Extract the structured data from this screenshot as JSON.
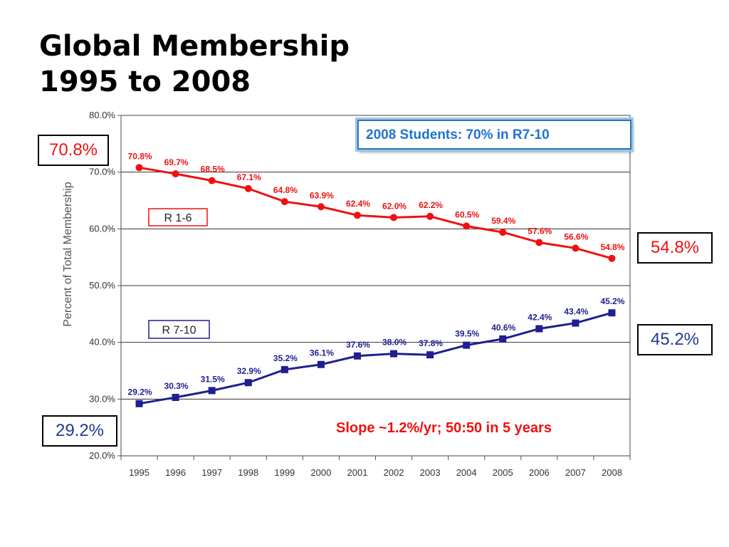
{
  "title": {
    "line1": "Global Membership",
    "line2": "1995 to 2008"
  },
  "callouts": {
    "red_start": "70.8%",
    "red_end": "54.8%",
    "blue_end": "45.2%",
    "blue_start": "29.2%"
  },
  "note_box": "2008 Students: 70% in R7-10",
  "slope_note": "Slope ~1.2%/yr; 50:50 in 5 years",
  "colors": {
    "red": "#ee1111",
    "blue": "#1f1f8f",
    "note_blue": "#1f73d2"
  },
  "chart_data": {
    "type": "line",
    "title": "",
    "xlabel": "",
    "ylabel": "Percent of Total Membership",
    "x": [
      "1995",
      "1996",
      "1997",
      "1998",
      "1999",
      "2000",
      "2001",
      "2002",
      "2003",
      "2004",
      "2005",
      "2006",
      "2007",
      "2008"
    ],
    "ylim": [
      20,
      80
    ],
    "yticks": [
      "20.0%",
      "30.0%",
      "40.0%",
      "50.0%",
      "60.0%",
      "70.0%",
      "80.0%"
    ],
    "grid": true,
    "series": [
      {
        "name": "R 1-6",
        "color": "#ee1111",
        "marker": "circle",
        "values": [
          70.8,
          69.7,
          68.5,
          67.1,
          64.8,
          63.9,
          62.4,
          62.0,
          62.2,
          60.5,
          59.4,
          57.6,
          56.6,
          54.8
        ],
        "labels": [
          "70.8%",
          "69.7%",
          "68.5%",
          "67.1%",
          "64.8%",
          "63.9%",
          "62.4%",
          "62.0%",
          "62.2%",
          "60.5%",
          "59.4%",
          "57.6%",
          "56.6%",
          "54.8%"
        ]
      },
      {
        "name": "R 7-10",
        "color": "#1f1f8f",
        "marker": "square",
        "values": [
          29.2,
          30.3,
          31.5,
          32.9,
          35.2,
          36.1,
          37.6,
          38.0,
          37.8,
          39.5,
          40.6,
          42.4,
          43.4,
          45.2
        ],
        "labels": [
          "29.2%",
          "30.3%",
          "31.5%",
          "32.9%",
          "35.2%",
          "36.1%",
          "37.6%",
          "38.0%",
          "37.8%",
          "39.5%",
          "40.6%",
          "42.4%",
          "43.4%",
          "45.2%"
        ]
      }
    ]
  }
}
